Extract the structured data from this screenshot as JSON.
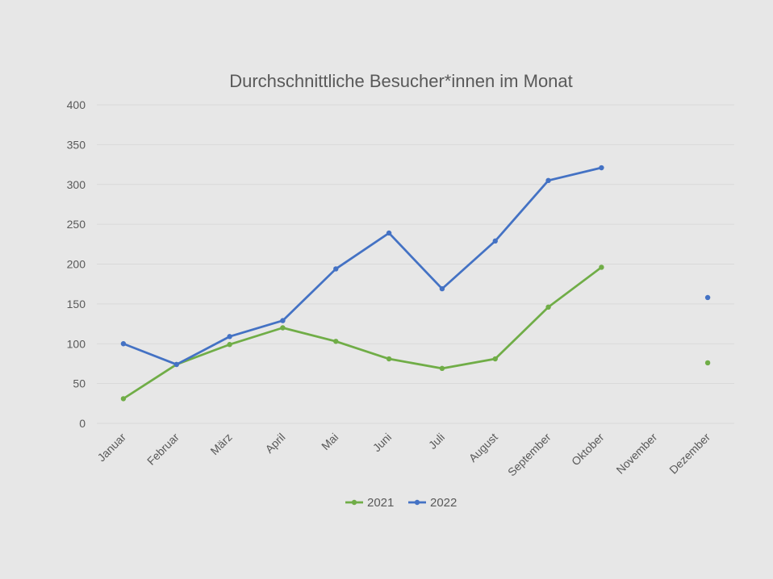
{
  "chart_data": {
    "type": "line",
    "title": "Durchschnittliche Besucher*innen im Monat",
    "xlabel": "",
    "ylabel": "",
    "categories": [
      "Januar",
      "Februar",
      "März",
      "April",
      "Mai",
      "Juni",
      "Juli",
      "August",
      "September",
      "Oktober",
      "November",
      "Dezember"
    ],
    "y_ticks": [
      0,
      50,
      100,
      150,
      200,
      250,
      300,
      350,
      400
    ],
    "ylim": [
      0,
      400
    ],
    "grid": true,
    "legend": "bottom",
    "series": [
      {
        "name": "2021",
        "color": "#70ad47",
        "values": [
          31,
          74,
          99,
          120,
          103,
          81,
          69,
          81,
          146,
          196,
          null,
          76
        ]
      },
      {
        "name": "2022",
        "color": "#4472c4",
        "values": [
          100,
          74,
          109,
          129,
          194,
          239,
          169,
          229,
          305,
          321,
          null,
          158
        ]
      }
    ]
  }
}
